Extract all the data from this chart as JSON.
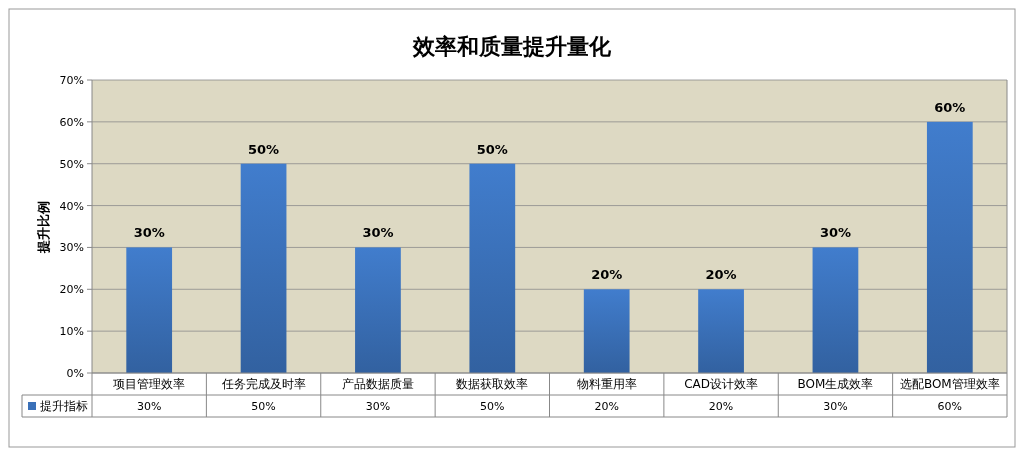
{
  "chart_data": {
    "type": "bar",
    "title": "效率和质量提升量化",
    "ylabel": "提升比例",
    "categories": [
      "项目管理效率",
      "任务完成及时率",
      "产品数据质量",
      "数据获取效率",
      "物料重用率",
      "CAD设计效率",
      "BOM生成效率",
      "选配BOM管理效率"
    ],
    "series": [
      {
        "name": "提升指标",
        "color": "#3a70b8",
        "values": [
          30,
          50,
          30,
          50,
          20,
          20,
          30,
          60
        ],
        "value_labels": [
          "30%",
          "50%",
          "30%",
          "50%",
          "20%",
          "20%",
          "30%",
          "60%"
        ]
      }
    ],
    "ylim": [
      0,
      70
    ],
    "yticks": [
      {
        "value": 0,
        "label": "0%"
      },
      {
        "value": 10,
        "label": "10%"
      },
      {
        "value": 20,
        "label": "20%"
      },
      {
        "value": 30,
        "label": "30%"
      },
      {
        "value": 40,
        "label": "40%"
      },
      {
        "value": 50,
        "label": "50%"
      },
      {
        "value": 60,
        "label": "60%"
      },
      {
        "value": 70,
        "label": "70%"
      }
    ],
    "grid": "y",
    "legend": "bottom"
  }
}
